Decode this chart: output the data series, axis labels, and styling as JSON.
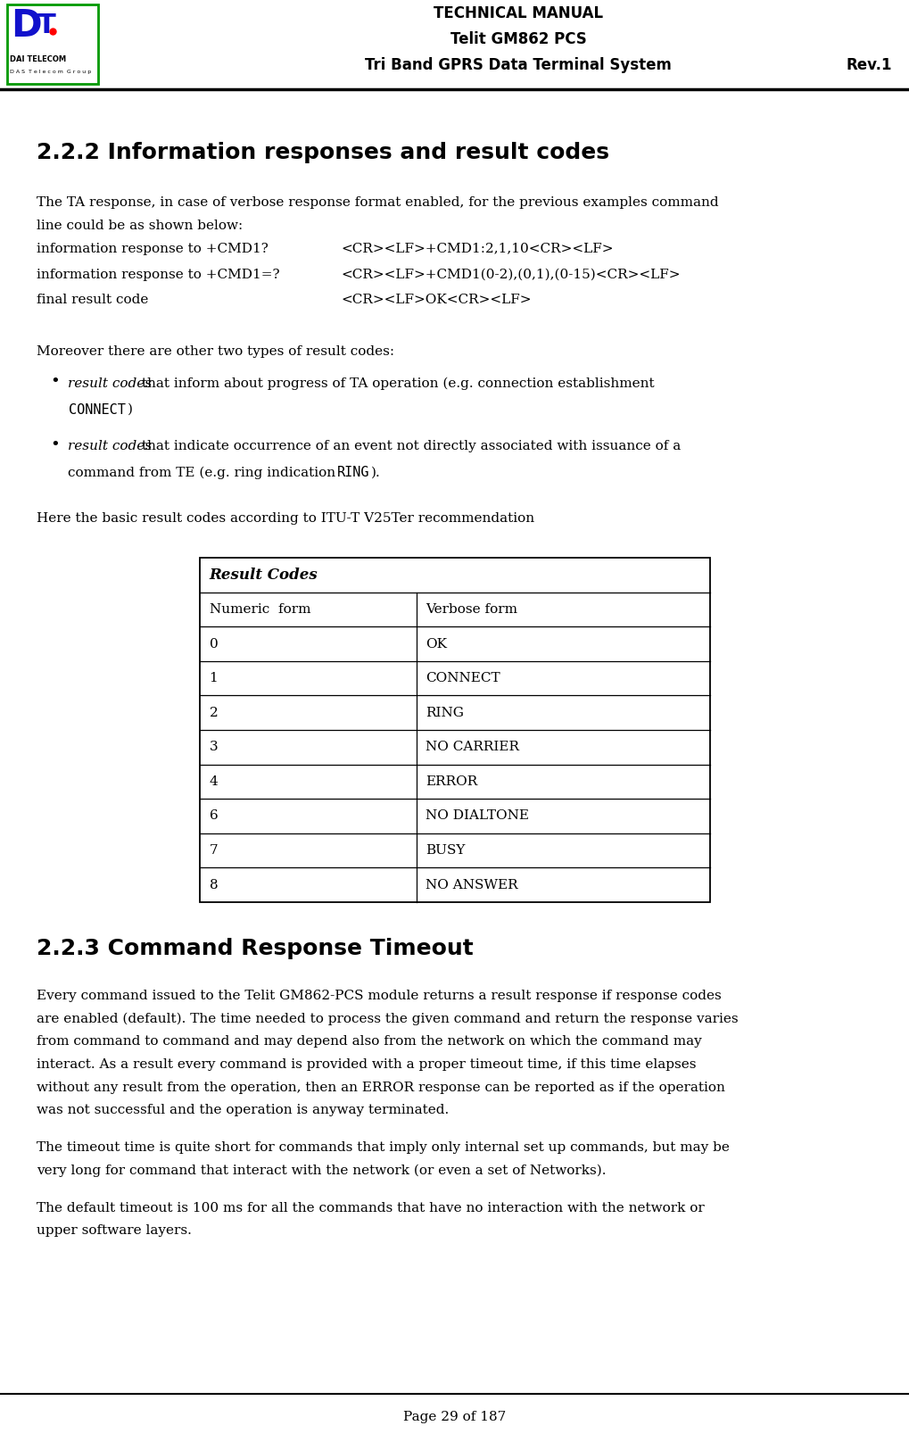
{
  "page_width": 10.2,
  "page_height": 16.07,
  "bg_color": "#ffffff",
  "header": {
    "title_line1": "TECHNICAL MANUAL",
    "title_line2": "Telit GM862 PCS",
    "title_line3": "Tri Band GPRS Data Terminal System",
    "rev": "Rev.1"
  },
  "section_222_title": "2.2.2 Information responses and result codes",
  "para1_line1": "The TA response, in case of verbose response format enabled, for the previous examples command",
  "para1_line2": "line could be as shown below:",
  "info_rows": [
    [
      "information response to +CMD1?",
      "<CR><LF>+CMD1:2,1,10<CR><LF>"
    ],
    [
      "information response to +CMD1=?",
      "<CR><LF>+CMD1(0-2),(0,1),(0-15)<CR><LF>"
    ],
    [
      "final result code",
      "<CR><LF>OK<CR><LF>"
    ]
  ],
  "para2": "Moreover there are other two types of result codes:",
  "bullet1_italic": "result codes",
  "bullet1_text": " that inform about progress of TA operation (e.g. connection establishment",
  "bullet1_line2_mono": "CONNECT",
  "bullet1_line2_end": ")",
  "bullet2_italic": "result codes",
  "bullet2_text": " that indicate occurrence of an event not directly associated with issuance of a",
  "bullet2_line2a": "command from TE (e.g. ring indication ",
  "bullet2_line2_mono": "RING",
  "bullet2_line2_end": ").",
  "para3": "Here the basic result codes according to ITU-T V25Ter recommendation",
  "table_header": "Result Codes",
  "table_col1": "Numeric  form",
  "table_col2": "Verbose form",
  "table_rows": [
    [
      "0",
      "OK"
    ],
    [
      "1",
      "CONNECT"
    ],
    [
      "2",
      "RING"
    ],
    [
      "3",
      "NO CARRIER"
    ],
    [
      "4",
      "ERROR"
    ],
    [
      "6",
      "NO DIALTONE"
    ],
    [
      "7",
      "BUSY"
    ],
    [
      "8",
      "NO ANSWER"
    ]
  ],
  "section_223_title": "2.2.3 Command Response Timeout",
  "para4_lines": [
    "Every command issued to the Telit GM862-PCS module returns a result response if response codes",
    "are enabled (default). The time needed to process the given command and return the response varies",
    "from command to command and may depend also from the network on which the command may",
    "interact. As a result every command is provided with a proper timeout time, if this time elapses",
    "without any result from the operation, then an ERROR response can be reported as if the operation",
    "was not successful and the operation is anyway terminated."
  ],
  "para5_lines": [
    "The timeout time is quite short for commands that imply only internal set up commands, but may be",
    "very long for command that interact with the network (or even a set of Networks)."
  ],
  "para6_lines": [
    "The default timeout is 100 ms for all the commands that have no interaction with the network or",
    "upper software layers."
  ],
  "footer": "Page 29 of 187",
  "body_font_size": 11,
  "section_font_size": 18,
  "header_font_size": 12,
  "table_font_size": 11
}
